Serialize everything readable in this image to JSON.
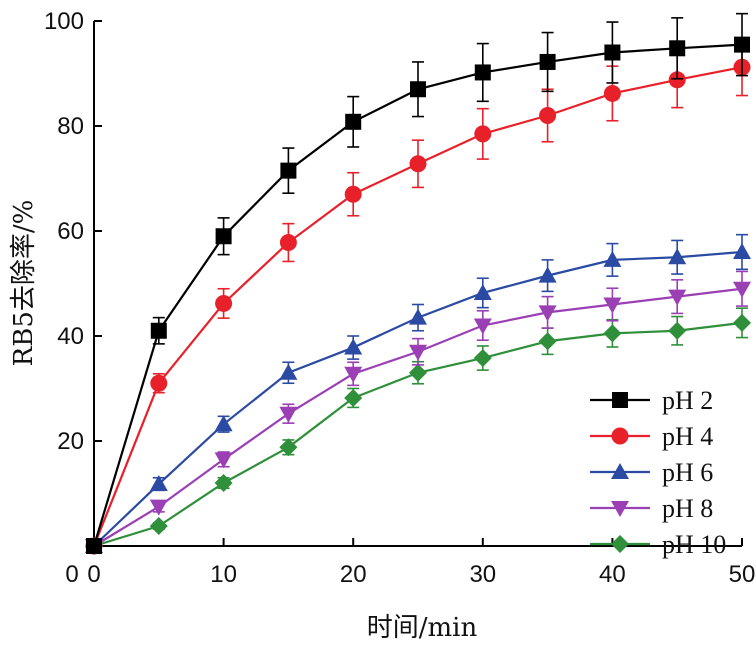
{
  "chart_data": {
    "type": "line",
    "xlabel": "时间/min",
    "ylabel": "RB5去除率/%",
    "xlim": [
      0,
      50
    ],
    "ylim": [
      0,
      100
    ],
    "xticks": [
      0,
      10,
      20,
      30,
      40,
      50
    ],
    "yticks": [
      20,
      40,
      60,
      80,
      100
    ],
    "grid": false,
    "legend_position": "lower-right",
    "x": [
      0,
      5,
      10,
      15,
      20,
      25,
      30,
      35,
      40,
      45,
      50
    ],
    "series": [
      {
        "name": "pH 2",
        "color": "#000000",
        "marker": "square",
        "values": [
          0,
          41,
          59,
          71.5,
          80.8,
          87,
          90.2,
          92.2,
          94,
          94.8,
          95.5
        ],
        "errors": [
          0,
          2.5,
          3.5,
          4.3,
          4.8,
          5.2,
          5.5,
          5.6,
          5.8,
          5.8,
          5.9
        ]
      },
      {
        "name": "pH 4",
        "color": "#e8202a",
        "marker": "circle",
        "values": [
          0,
          31,
          46.2,
          57.8,
          67,
          72.8,
          78.5,
          82,
          86.2,
          88.8,
          91.2
        ],
        "errors": [
          0,
          1.8,
          2.8,
          3.6,
          4.1,
          4.5,
          4.8,
          5,
          5.2,
          5.3,
          5.4
        ]
      },
      {
        "name": "pH 6",
        "color": "#2b4aa3",
        "marker": "triangle-up",
        "values": [
          0,
          11.8,
          23.2,
          33,
          37.8,
          43.5,
          48.2,
          51.5,
          54.5,
          55,
          56
        ],
        "errors": [
          0,
          1.2,
          1.5,
          2,
          2.2,
          2.5,
          2.8,
          3,
          3.1,
          3.2,
          3.3
        ]
      },
      {
        "name": "pH 8",
        "color": "#9b3fb5",
        "marker": "triangle-down",
        "values": [
          0,
          7.5,
          16.5,
          25.2,
          32.8,
          37,
          42,
          44.5,
          46,
          47.5,
          49
        ],
        "errors": [
          0,
          1,
          1.4,
          1.8,
          2.2,
          2.5,
          2.8,
          3,
          3.1,
          3.2,
          3.3
        ]
      },
      {
        "name": "pH 10",
        "color": "#2f8f3a",
        "marker": "diamond",
        "values": [
          0,
          3.8,
          12,
          18.8,
          28.2,
          33,
          35.8,
          39,
          40.5,
          41,
          42.5
        ],
        "errors": [
          0,
          0.6,
          1,
          1.4,
          1.8,
          2.1,
          2.3,
          2.5,
          2.6,
          2.7,
          2.8
        ]
      }
    ]
  }
}
